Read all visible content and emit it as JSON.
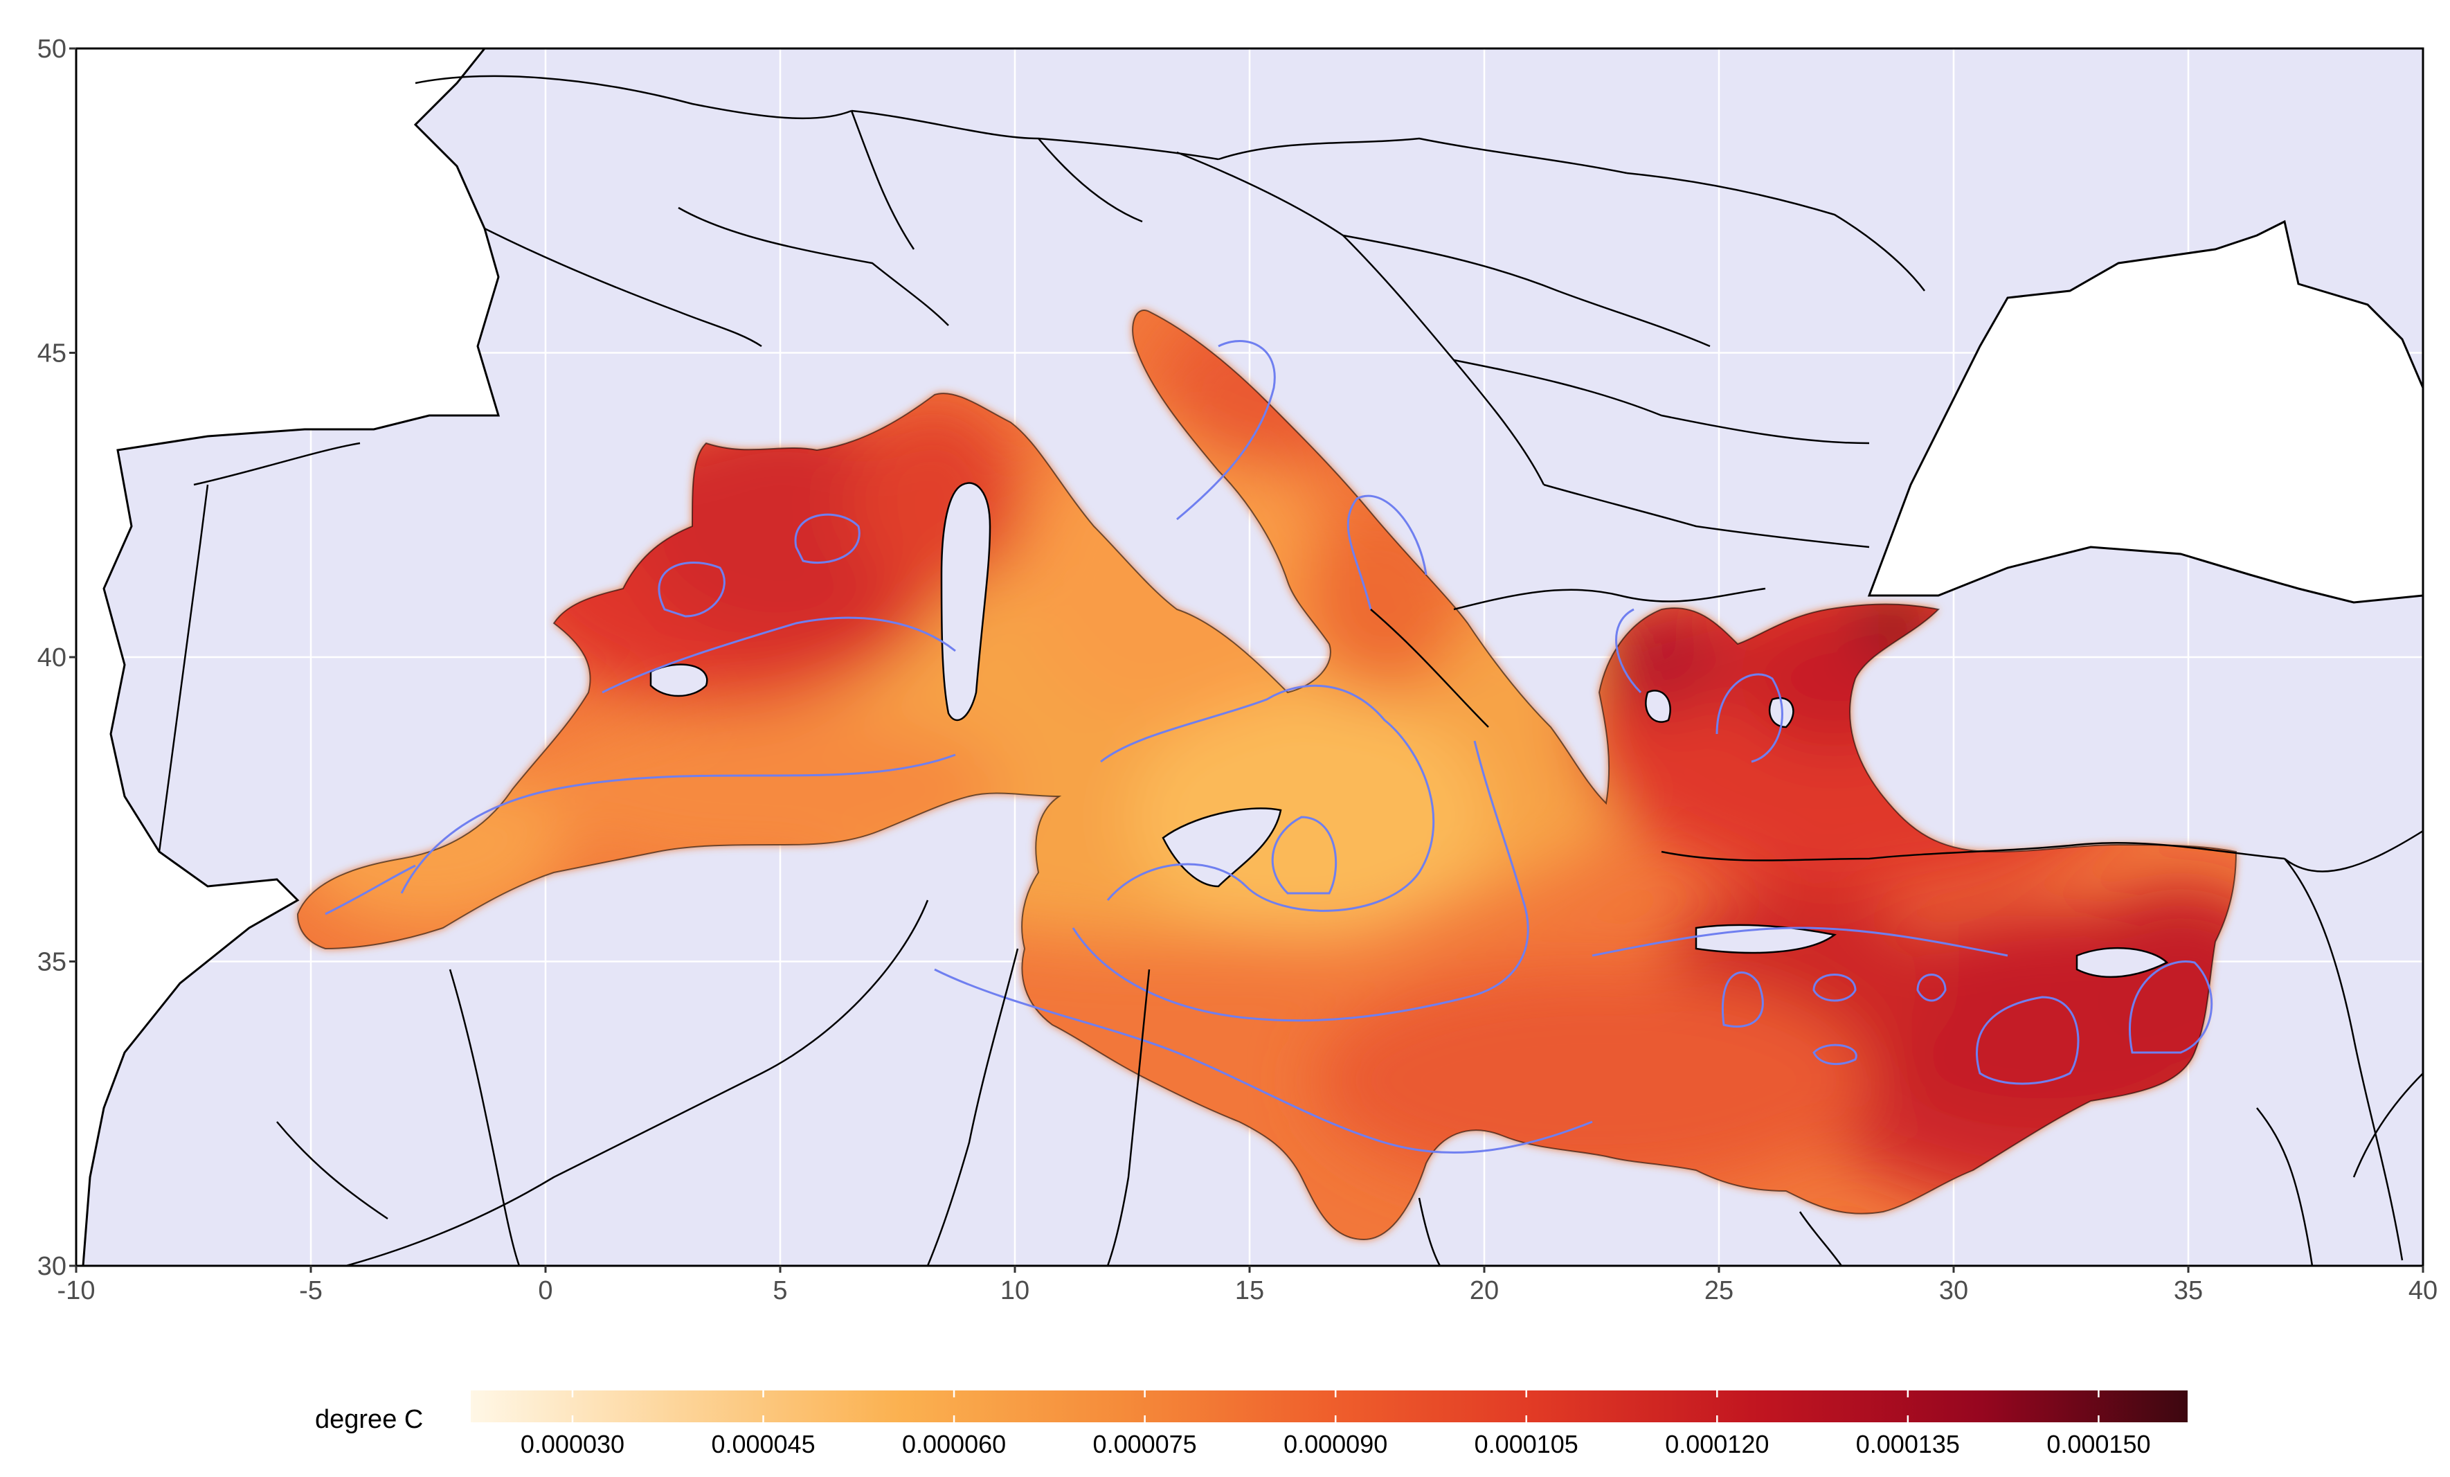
{
  "map": {
    "x_range": [
      -10,
      40
    ],
    "y_range": [
      30,
      50
    ],
    "x_ticks": [
      {
        "value": -10,
        "label": "-10"
      },
      {
        "value": -5,
        "label": "-5"
      },
      {
        "value": 0,
        "label": "0"
      },
      {
        "value": 5,
        "label": "5"
      },
      {
        "value": 10,
        "label": "10"
      },
      {
        "value": 15,
        "label": "15"
      },
      {
        "value": 20,
        "label": "20"
      },
      {
        "value": 25,
        "label": "25"
      },
      {
        "value": 30,
        "label": "30"
      },
      {
        "value": 35,
        "label": "35"
      },
      {
        "value": 40,
        "label": "40"
      }
    ],
    "y_ticks": [
      {
        "value": 30,
        "label": "30"
      },
      {
        "value": 35,
        "label": "35"
      },
      {
        "value": 40,
        "label": "40"
      },
      {
        "value": 45,
        "label": "45"
      },
      {
        "value": 50,
        "label": "50"
      }
    ],
    "grid": true,
    "land_color": "#e5e5f7",
    "sea_outside_color": "#ffffff",
    "contour_color": "#6f7ff0",
    "hotspots": [
      {
        "lon": 3.0,
        "lat": 41.2,
        "level": 0.82
      },
      {
        "lon": 28.0,
        "lat": 40.6,
        "level": 1.0
      },
      {
        "lon": 25.5,
        "lat": 39.6,
        "level": 0.8
      },
      {
        "lon": 32.0,
        "lat": 33.8,
        "level": 0.85
      },
      {
        "lon": 35.0,
        "lat": 34.2,
        "level": 0.88
      },
      {
        "lon": 26.0,
        "lat": 34.3,
        "level": 0.75
      },
      {
        "lon": 16.2,
        "lat": 35.5,
        "level": 0.05
      }
    ]
  },
  "legend": {
    "title": "degree C",
    "position": "bottom",
    "min": 2.2e-05,
    "max": 0.000157,
    "labels": [
      {
        "value": 3e-05,
        "label": "0.000030"
      },
      {
        "value": 4.5e-05,
        "label": "0.000045"
      },
      {
        "value": 6e-05,
        "label": "0.000060"
      },
      {
        "value": 7.5e-05,
        "label": "0.000075"
      },
      {
        "value": 9e-05,
        "label": "0.000090"
      },
      {
        "value": 0.000105,
        "label": "0.000105"
      },
      {
        "value": 0.00012,
        "label": "0.000120"
      },
      {
        "value": 0.000135,
        "label": "0.000135"
      },
      {
        "value": 0.00015,
        "label": "0.000150"
      }
    ],
    "colors": [
      "#fff7e6",
      "#fdd59a",
      "#fbb150",
      "#f58b3a",
      "#ef5f2c",
      "#e13a25",
      "#c11520",
      "#96061f",
      "#5c0a14"
    ]
  }
}
